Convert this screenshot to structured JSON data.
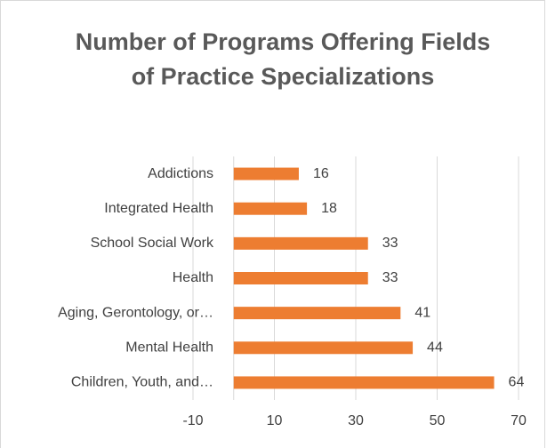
{
  "chart_data": {
    "type": "bar",
    "orientation": "horizontal",
    "title": "Number of Programs Offering Fields of Practice Specializations",
    "categories": [
      "Addictions",
      "Integrated Health",
      "School Social Work",
      "Health",
      "Aging, Gerontology, or…",
      "Mental Health",
      "Children, Youth, and…"
    ],
    "values": [
      16,
      18,
      33,
      33,
      41,
      44,
      64
    ],
    "color": "#ed7d31",
    "xlim": [
      -10,
      70
    ],
    "xticks": [
      -10,
      10,
      30,
      50,
      70
    ],
    "grid": true
  }
}
